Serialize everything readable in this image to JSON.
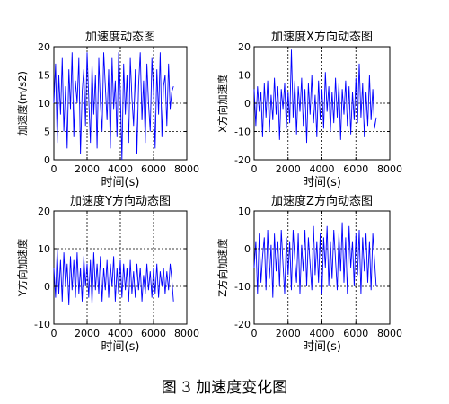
{
  "figure": {
    "caption": "图 3  加速度变化图"
  },
  "chart_data": [
    {
      "type": "line",
      "title": "加速度动态图",
      "xlabel": "时间(s)",
      "ylabel": "加速度(m/s2)",
      "xlim": [
        0,
        8000
      ],
      "ylim": [
        0,
        20
      ],
      "xticks": [
        0,
        2000,
        4000,
        6000,
        8000
      ],
      "yticks": [
        0,
        5,
        10,
        15,
        20
      ],
      "grid": true,
      "color": "#0000ff",
      "x": [
        0,
        100,
        200,
        300,
        400,
        500,
        600,
        700,
        800,
        900,
        1000,
        1100,
        1200,
        1300,
        1400,
        1500,
        1600,
        1700,
        1800,
        1900,
        2000,
        2100,
        2200,
        2300,
        2400,
        2500,
        2600,
        2700,
        2800,
        2900,
        3000,
        3100,
        3200,
        3300,
        3400,
        3500,
        3600,
        3700,
        3800,
        3900,
        4000,
        4100,
        4200,
        4300,
        4400,
        4500,
        4600,
        4700,
        4800,
        4900,
        5000,
        5100,
        5200,
        5300,
        5400,
        5500,
        5600,
        5700,
        5800,
        5900,
        6000,
        6100,
        6200,
        6300,
        6400,
        6500,
        6600,
        6700,
        6800,
        6900,
        7000,
        7100,
        7200
      ],
      "series": [
        {
          "values": [
            10,
            17,
            3,
            15,
            8,
            18,
            5,
            13,
            2,
            16,
            9,
            19,
            4,
            14,
            10,
            18,
            1,
            12,
            16,
            6,
            19,
            11,
            3,
            17,
            8,
            15,
            2,
            18,
            10,
            5,
            19,
            13,
            7,
            16,
            2,
            18,
            9,
            14,
            4,
            19,
            12,
            0,
            17,
            8,
            15,
            3,
            18,
            11,
            6,
            16,
            1,
            13,
            19,
            7,
            14,
            3,
            17,
            10,
            5,
            18,
            12,
            2,
            16,
            8,
            19,
            4,
            13,
            15,
            6,
            17,
            9,
            12,
            13
          ]
        }
      ]
    },
    {
      "type": "line",
      "title": "加速度X方向动态图",
      "xlabel": "时间(s)",
      "ylabel": "X方向加速度",
      "xlim": [
        0,
        8000
      ],
      "ylim": [
        -20,
        20
      ],
      "xticks": [
        0,
        2000,
        4000,
        6000,
        8000
      ],
      "yticks": [
        -20,
        -10,
        0,
        10,
        20
      ],
      "grid": true,
      "color": "#0000ff",
      "x": [
        0,
        100,
        200,
        300,
        400,
        500,
        600,
        700,
        800,
        900,
        1000,
        1100,
        1200,
        1300,
        1400,
        1500,
        1600,
        1700,
        1800,
        1900,
        2000,
        2100,
        2200,
        2300,
        2400,
        2500,
        2600,
        2700,
        2800,
        2900,
        3000,
        3100,
        3200,
        3300,
        3400,
        3500,
        3600,
        3700,
        3800,
        3900,
        4000,
        4100,
        4200,
        4300,
        4400,
        4500,
        4600,
        4700,
        4800,
        4900,
        5000,
        5100,
        5200,
        5300,
        5400,
        5500,
        5600,
        5700,
        5800,
        5900,
        6000,
        6100,
        6200,
        6300,
        6400,
        6500,
        6600,
        6700,
        6800,
        6900,
        7000,
        7100,
        7200
      ],
      "series": [
        {
          "values": [
            5,
            -8,
            6,
            -3,
            4,
            -12,
            7,
            -5,
            8,
            -10,
            3,
            -6,
            9,
            -4,
            6,
            -13,
            5,
            -2,
            7,
            -9,
            4,
            -7,
            19,
            -5,
            8,
            -11,
            6,
            -3,
            9,
            -8,
            5,
            -14,
            7,
            -4,
            10,
            -7,
            3,
            -12,
            8,
            -6,
            5,
            -9,
            11,
            -3,
            6,
            -10,
            4,
            -7,
            9,
            -5,
            7,
            -13,
            5,
            -4,
            8,
            -8,
            6,
            -11,
            4,
            -6,
            9,
            -7,
            14,
            -5,
            7,
            -12,
            4,
            -8,
            10,
            -6,
            5,
            -9,
            -5
          ]
        }
      ]
    },
    {
      "type": "line",
      "title": "加速度Y方向动态图",
      "xlabel": "时间(s)",
      "ylabel": "Y方向加速度",
      "xlim": [
        0,
        8000
      ],
      "ylim": [
        -10,
        20
      ],
      "xticks": [
        0,
        2000,
        4000,
        6000,
        8000
      ],
      "yticks": [
        -10,
        0,
        10,
        20
      ],
      "grid": true,
      "color": "#0000ff",
      "x": [
        0,
        100,
        200,
        300,
        400,
        500,
        600,
        700,
        800,
        900,
        1000,
        1100,
        1200,
        1300,
        1400,
        1500,
        1600,
        1700,
        1800,
        1900,
        2000,
        2100,
        2200,
        2300,
        2400,
        2500,
        2600,
        2700,
        2800,
        2900,
        3000,
        3100,
        3200,
        3300,
        3400,
        3500,
        3600,
        3700,
        3800,
        3900,
        4000,
        4100,
        4200,
        4300,
        4400,
        4500,
        4600,
        4700,
        4800,
        4900,
        5000,
        5100,
        5200,
        5300,
        5400,
        5500,
        5600,
        5700,
        5800,
        5900,
        6000,
        6100,
        6200,
        6300,
        6400,
        6500,
        6600,
        6700,
        6800,
        6900,
        7000,
        7100,
        7200
      ],
      "series": [
        {
          "values": [
            5,
            -3,
            10,
            -2,
            7,
            -4,
            9,
            0,
            6,
            -5,
            8,
            -1,
            7,
            -3,
            9,
            -2,
            5,
            -4,
            8,
            0,
            6,
            -3,
            7,
            -5,
            9,
            -1,
            6,
            -2,
            8,
            -4,
            5,
            -1,
            7,
            -3,
            6,
            0,
            8,
            -4,
            5,
            -2,
            7,
            -3,
            6,
            -1,
            5,
            -4,
            7,
            -2,
            4,
            -3,
            6,
            -1,
            5,
            -4,
            3,
            -2,
            6,
            -1,
            4,
            -3,
            5,
            -2,
            6,
            -3,
            4,
            0,
            5,
            -2,
            4,
            -1,
            6,
            2,
            -4
          ]
        }
      ]
    },
    {
      "type": "line",
      "title": "加速度Z方向动态图",
      "xlabel": "时间(s)",
      "ylabel": "Z方向加速度",
      "xlim": [
        0,
        8000
      ],
      "ylim": [
        -20,
        10
      ],
      "xticks": [
        0,
        2000,
        4000,
        6000,
        8000
      ],
      "yticks": [
        -20,
        -10,
        0,
        10
      ],
      "grid": true,
      "color": "#0000ff",
      "x": [
        0,
        100,
        200,
        300,
        400,
        500,
        600,
        700,
        800,
        900,
        1000,
        1100,
        1200,
        1300,
        1400,
        1500,
        1600,
        1700,
        1800,
        1900,
        2000,
        2100,
        2200,
        2300,
        2400,
        2500,
        2600,
        2700,
        2800,
        2900,
        3000,
        3100,
        3200,
        3300,
        3400,
        3500,
        3600,
        3700,
        3800,
        3900,
        4000,
        4100,
        4200,
        4300,
        4400,
        4500,
        4600,
        4700,
        4800,
        4900,
        5000,
        5100,
        5200,
        5300,
        5400,
        5500,
        5600,
        5700,
        5800,
        5900,
        6000,
        6100,
        6200,
        6300,
        6400,
        6500,
        6600,
        6700,
        6800,
        6900,
        7000,
        7100,
        7200
      ],
      "series": [
        {
          "values": [
            -5,
            2,
            -12,
            4,
            -9,
            -2,
            3,
            -11,
            5,
            -8,
            1,
            -13,
            4,
            -6,
            2,
            -10,
            5,
            -4,
            -12,
            3,
            -7,
            2,
            -11,
            5,
            -3,
            -9,
            4,
            -12,
            1,
            -6,
            5,
            -10,
            3,
            -4,
            -11,
            6,
            -7,
            2,
            -9,
            4,
            -12,
            3,
            -5,
            6,
            -10,
            2,
            -8,
            5,
            -3,
            -11,
            4,
            -6,
            7,
            -9,
            3,
            -12,
            6,
            -5,
            2,
            -10,
            4,
            -7,
            5,
            -12,
            3,
            -6,
            4,
            -9,
            2,
            -11,
            4,
            -3,
            -10
          ]
        }
      ]
    }
  ]
}
